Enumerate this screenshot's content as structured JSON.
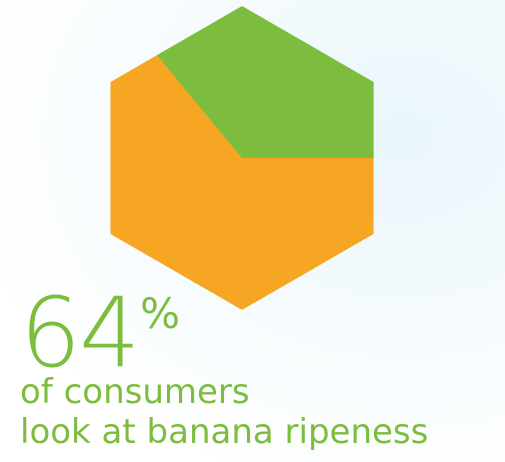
{
  "chart_data": {
    "type": "pie",
    "shape": "hexagon",
    "values": [
      64,
      36
    ],
    "colors": [
      "#f6a623",
      "#7cbd3f"
    ]
  },
  "stat": {
    "number": "64",
    "symbol": "%"
  },
  "caption": {
    "line1": "of consumers",
    "line2": "look at banana ripeness"
  }
}
